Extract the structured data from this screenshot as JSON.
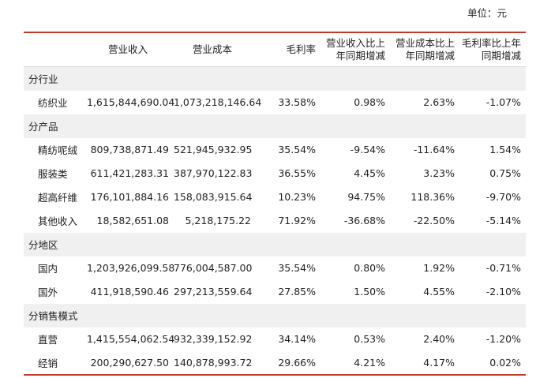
{
  "unit": "单位：元",
  "headers": [
    "",
    "营业收入",
    "营业成本",
    "毛利率",
    "营业收入比上年同期增减",
    "营业成本比上年同期增减",
    "毛利率比上年同期增减"
  ],
  "groups": [
    {
      "title": "分行业",
      "rows": [
        {
          "label": "纺织业",
          "cells": [
            "1,615,844,690.04",
            "1,073,218,146.64",
            "33.58%",
            "0.98%",
            "2.63%",
            "-1.07%"
          ]
        }
      ]
    },
    {
      "title": "分产品",
      "rows": [
        {
          "label": "精纺呢绒",
          "cells": [
            "809,738,871.49",
            "521,945,932.95",
            "35.54%",
            "-9.54%",
            "-11.64%",
            "1.54%"
          ]
        },
        {
          "label": "服装类",
          "cells": [
            "611,421,283.31",
            "387,970,122.83",
            "36.55%",
            "4.45%",
            "3.23%",
            "0.75%"
          ]
        },
        {
          "label": "超高纤维",
          "cells": [
            "176,101,884.16",
            "158,083,915.64",
            "10.23%",
            "94.75%",
            "118.36%",
            "-9.70%"
          ]
        },
        {
          "label": "其他收入",
          "cells": [
            "18,582,651.08",
            "5,218,175.22",
            "71.92%",
            "-36.68%",
            "-22.50%",
            "-5.14%"
          ]
        }
      ]
    },
    {
      "title": "分地区",
      "rows": [
        {
          "label": "国内",
          "cells": [
            "1,203,926,099.58",
            "776,004,587.00",
            "35.54%",
            "0.80%",
            "1.92%",
            "-0.71%"
          ]
        },
        {
          "label": "国外",
          "cells": [
            "411,918,590.46",
            "297,213,559.64",
            "27.85%",
            "1.50%",
            "4.55%",
            "-2.10%"
          ]
        }
      ]
    },
    {
      "title": "分销售模式",
      "rows": [
        {
          "label": "直营",
          "cells": [
            "1,415,554,062.54",
            "932,339,152.92",
            "34.14%",
            "0.53%",
            "2.40%",
            "-1.20%"
          ]
        },
        {
          "label": "经销",
          "cells": [
            "200,290,627.50",
            "140,878,993.72",
            "29.66%",
            "4.21%",
            "4.17%",
            "0.02%"
          ]
        }
      ]
    }
  ]
}
